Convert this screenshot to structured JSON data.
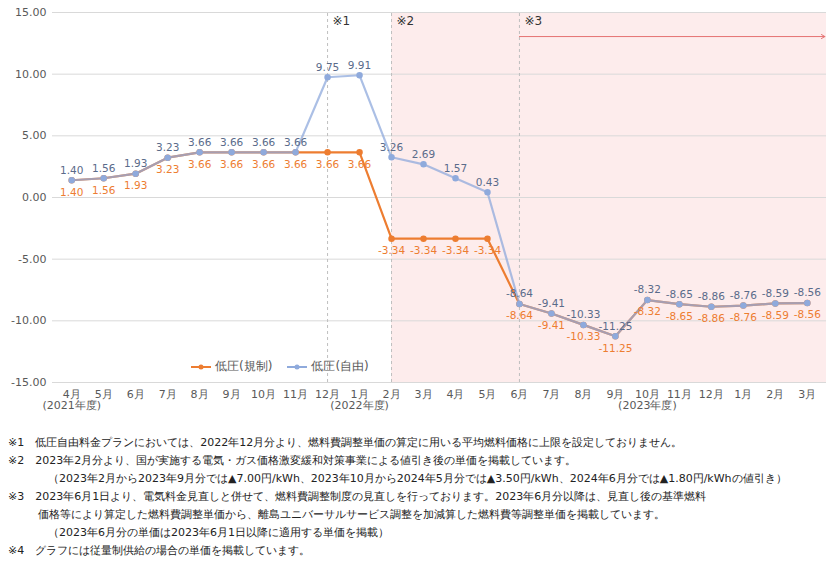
{
  "chart_data": {
    "type": "line",
    "categories": [
      "4月\n(2021年度)",
      "5月",
      "6月",
      "7月",
      "8月",
      "9月",
      "10月",
      "11月",
      "12月",
      "1月\n(2022年度)",
      "2月",
      "3月",
      "4月",
      "5月",
      "6月",
      "7月",
      "8月",
      "9月",
      "10月\n(2023年度)",
      "11月",
      "12月",
      "1月",
      "2月",
      "3月"
    ],
    "series": [
      {
        "name": "低圧(規制)",
        "color": "#ED7D31",
        "marker": "circle",
        "values": [
          1.4,
          1.56,
          1.93,
          3.23,
          3.66,
          3.66,
          3.66,
          3.66,
          3.66,
          3.66,
          -3.34,
          -3.34,
          -3.34,
          -3.34,
          -8.64,
          -9.41,
          -10.33,
          -11.25,
          -8.32,
          -8.65,
          -8.86,
          -8.76,
          -8.59,
          -8.56
        ],
        "value_labels": [
          "1.40",
          "1.56",
          "1.93",
          "3.23",
          "3.66",
          "3.66",
          "3.66",
          "3.66",
          "3.66",
          "3.66",
          "-3.34",
          "-3.34",
          "-3.34",
          "-3.34",
          "-8.64",
          "-9.41",
          "-10.33",
          "-11.25",
          "-8.32",
          "-8.65",
          "-8.86",
          "-8.76",
          "-8.59",
          "-8.56"
        ]
      },
      {
        "name": "低圧(自由)",
        "color": "#8FAADC",
        "marker": "circle",
        "values": [
          1.4,
          1.56,
          1.93,
          3.23,
          3.66,
          3.66,
          3.66,
          3.66,
          9.75,
          9.91,
          3.26,
          2.69,
          1.57,
          0.43,
          -8.64,
          -9.41,
          -10.33,
          -11.25,
          -8.32,
          -8.65,
          -8.86,
          -8.76,
          -8.59,
          -8.56
        ],
        "value_labels": [
          "1.40",
          "1.56",
          "1.93",
          "3.23",
          "3.66",
          "3.66",
          "3.66",
          "3.66",
          "9.75",
          "9.91",
          "3.26",
          "2.69",
          "1.57",
          "0.43",
          "-8.64",
          "-9.41",
          "-10.33",
          "-11.25",
          "-8.32",
          "-8.65",
          "-8.86",
          "-8.76",
          "-8.59",
          "-8.56"
        ]
      }
    ],
    "ylim": [
      -15,
      15
    ],
    "yticks": [
      {
        "value": -15,
        "label": "-15.00"
      },
      {
        "value": -10,
        "label": "-10.00"
      },
      {
        "value": -5,
        "label": "-5.00"
      },
      {
        "value": 0,
        "label": "0.00"
      },
      {
        "value": 5,
        "label": "5.00"
      },
      {
        "value": 10,
        "label": "10.00"
      },
      {
        "value": 15,
        "label": "15.00"
      }
    ],
    "grid": true,
    "data_labels": true,
    "legend": "bottom",
    "annotations": [
      {
        "text": "※1",
        "index": 8
      },
      {
        "text": "※2",
        "index": 10
      },
      {
        "text": "※3",
        "index": 14
      }
    ],
    "notes": [
      "※1　低圧自由料金プランにおいては、2022年12月分より、燃料費調整単価の算定に用いる平均燃料価格に上限を設定しておりません。",
      "※2　2023年2月分より、国が実施する電気・ガス価格激変緩和対策事業による値引き後の単価を掲載しています。",
      "（2023年2月から2023年9月分では▲7.00円/kWh、2023年10月から2024年5月分では▲3.50円/kWh、2024年6月分では▲1.80円/kWhの値引き）",
      "※3　2023年6月1日より、電気料金見直しと併せて、燃料費調整制度の見直しを行っております。2023年6月分以降は、見直し後の基準燃料",
      "価格等により算定した燃料費調整単価から、離島ユニバーサルサービス調整を加減算した燃料費等調整単価を掲載しています。",
      "（2023年6月分の単価は2023年6月1日以降に適用する単価を掲載）",
      "※4　グラフには従量制供給の場合の単価を掲載しています。"
    ]
  }
}
